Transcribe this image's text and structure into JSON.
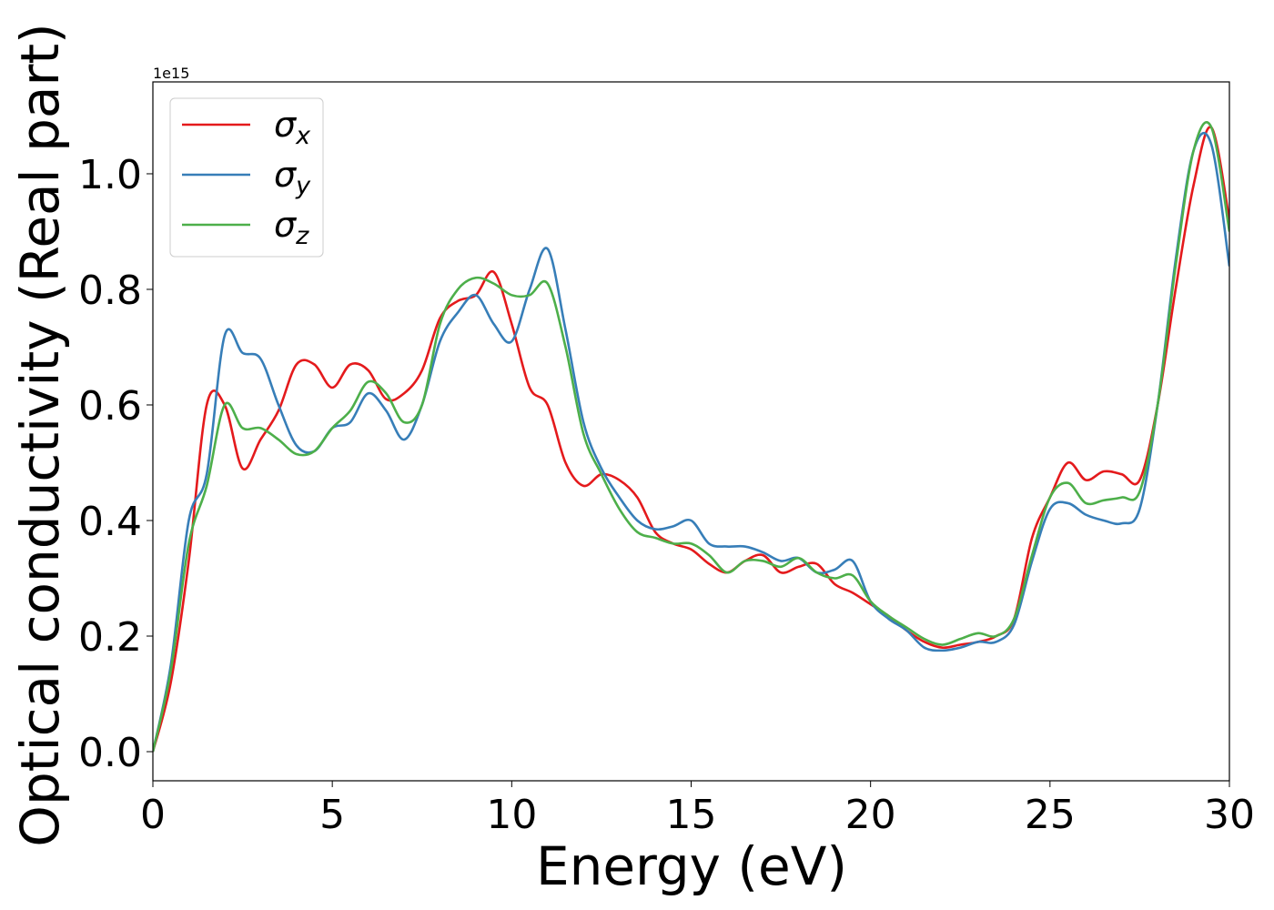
{
  "chart_data": {
    "type": "line",
    "xlabel": "Energy (eV)",
    "ylabel": "Optical conductivity (Real part)",
    "y_offset_label": "1e15",
    "xlim": [
      0,
      30
    ],
    "ylim": [
      -0.0504,
      1.159
    ],
    "xticks": [
      0,
      5,
      10,
      15,
      20,
      25,
      30
    ],
    "yticks": [
      {
        "value": 0,
        "label": "0.0"
      },
      0.2,
      0.4,
      0.6,
      0.8,
      {
        "value": 1,
        "label": "1.0"
      }
    ],
    "grid": false,
    "legend": "upper left",
    "x": [
      0,
      0.5,
      1,
      1.5,
      2,
      2.5,
      3,
      3.5,
      4,
      4.5,
      5,
      5.5,
      6,
      6.5,
      7,
      7.5,
      8,
      8.5,
      9,
      9.5,
      10,
      10.5,
      11,
      11.5,
      12,
      12.5,
      13,
      13.5,
      14,
      14.5,
      15,
      15.5,
      16,
      16.5,
      17,
      17.5,
      18,
      18.5,
      19,
      19.5,
      20,
      20.5,
      21,
      21.5,
      22,
      22.5,
      23,
      23.5,
      24,
      24.5,
      25,
      25.5,
      26,
      26.5,
      27,
      27.5,
      28,
      28.5,
      29,
      29.5,
      30
    ],
    "series": [
      {
        "name": "σx",
        "color": "#e41a1c",
        "values": [
          0,
          0.12,
          0.33,
          0.6,
          0.6,
          0.49,
          0.54,
          0.59,
          0.67,
          0.67,
          0.63,
          0.67,
          0.66,
          0.61,
          0.62,
          0.66,
          0.75,
          0.78,
          0.79,
          0.83,
          0.74,
          0.63,
          0.6,
          0.5,
          0.46,
          0.48,
          0.47,
          0.44,
          0.38,
          0.36,
          0.35,
          0.325,
          0.31,
          0.33,
          0.34,
          0.31,
          0.32,
          0.325,
          0.29,
          0.275,
          0.255,
          0.235,
          0.21,
          0.19,
          0.18,
          0.185,
          0.19,
          0.2,
          0.23,
          0.37,
          0.44,
          0.5,
          0.47,
          0.485,
          0.48,
          0.47,
          0.6,
          0.8,
          0.98,
          1.08,
          0.92
        ]
      },
      {
        "name": "σy",
        "color": "#377eb8",
        "values": [
          0,
          0.15,
          0.4,
          0.48,
          0.72,
          0.69,
          0.68,
          0.6,
          0.53,
          0.52,
          0.56,
          0.57,
          0.62,
          0.59,
          0.54,
          0.6,
          0.71,
          0.76,
          0.79,
          0.74,
          0.71,
          0.8,
          0.87,
          0.73,
          0.57,
          0.49,
          0.44,
          0.4,
          0.385,
          0.39,
          0.4,
          0.36,
          0.355,
          0.355,
          0.345,
          0.33,
          0.335,
          0.31,
          0.315,
          0.33,
          0.26,
          0.23,
          0.21,
          0.18,
          0.175,
          0.18,
          0.19,
          0.19,
          0.22,
          0.33,
          0.42,
          0.43,
          0.41,
          0.4,
          0.395,
          0.42,
          0.6,
          0.85,
          1.04,
          1.05,
          0.84
        ]
      },
      {
        "name": "σz",
        "color": "#4daf4a",
        "values": [
          0,
          0.14,
          0.36,
          0.46,
          0.6,
          0.56,
          0.56,
          0.54,
          0.515,
          0.52,
          0.56,
          0.59,
          0.64,
          0.62,
          0.57,
          0.6,
          0.74,
          0.8,
          0.82,
          0.81,
          0.79,
          0.79,
          0.81,
          0.7,
          0.55,
          0.48,
          0.42,
          0.38,
          0.37,
          0.36,
          0.36,
          0.34,
          0.31,
          0.33,
          0.33,
          0.32,
          0.335,
          0.31,
          0.3,
          0.305,
          0.26,
          0.235,
          0.215,
          0.195,
          0.185,
          0.195,
          0.205,
          0.2,
          0.23,
          0.34,
          0.44,
          0.465,
          0.43,
          0.435,
          0.44,
          0.45,
          0.6,
          0.84,
          1.04,
          1.08,
          0.9
        ]
      }
    ]
  }
}
